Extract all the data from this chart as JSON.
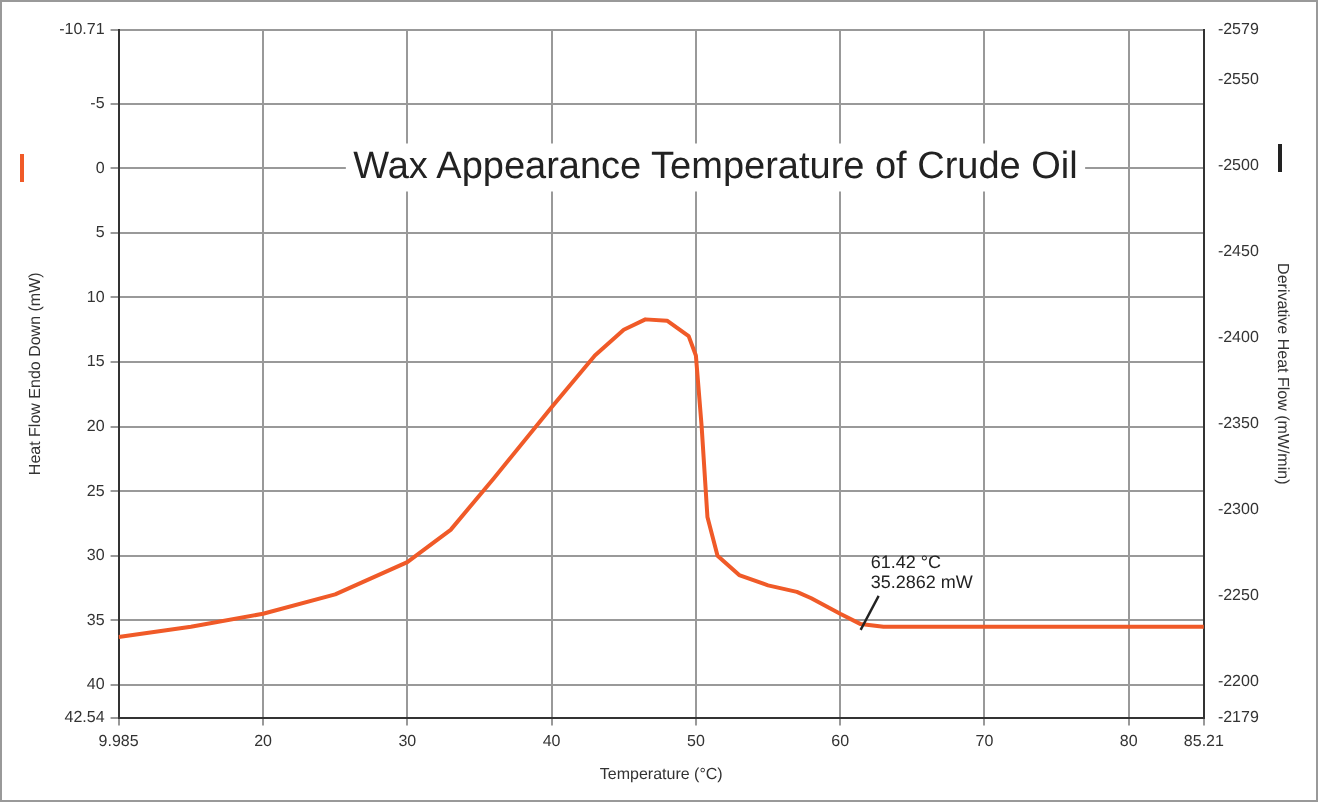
{
  "chart_data": {
    "type": "line",
    "title": "Wax Appearance Temperature of Crude Oil",
    "xlabel": "Temperature (°C)",
    "ylabel": "Heat Flow Endo Down (mW)",
    "y2label": "Derivative Heat Flow (mW/min)",
    "series": [
      {
        "color": "#f05a28",
        "x": [
          9.985,
          15,
          20,
          25,
          30,
          33,
          36,
          40,
          43,
          45,
          46.5,
          48,
          49.5,
          50,
          50.4,
          50.8,
          51.5,
          53,
          55,
          57,
          58,
          60,
          61.42,
          63,
          70,
          85.21
        ],
        "values": [
          36.3,
          35.5,
          34.5,
          33.0,
          30.5,
          28,
          24,
          18.5,
          14.5,
          12.5,
          11.7,
          11.8,
          13,
          14.5,
          20,
          27,
          30,
          31.5,
          32.3,
          32.8,
          33.3,
          34.5,
          35.3,
          35.5,
          35.5,
          35.5
        ]
      }
    ],
    "annotations": [
      {
        "text": "61.42 °C\n35.2862 mW",
        "x": 61.42,
        "y": 35.2862
      }
    ],
    "xlim": [
      9.985,
      85.21
    ],
    "xticks": [
      9.985,
      20,
      30,
      40,
      50,
      60,
      70,
      80,
      85.21
    ],
    "ylim": [
      42.54,
      -10.71
    ],
    "yticks": [
      -10.71,
      -5,
      0,
      5,
      10,
      15,
      20,
      25,
      30,
      35,
      40,
      42.54
    ],
    "y2lim": [
      -2179,
      -2579
    ],
    "y2ticks": [
      -2579,
      -2550,
      -2500,
      -2450,
      -2400,
      -2350,
      -2300,
      -2250,
      -2200,
      -2179
    ],
    "grid": true,
    "marker": "none",
    "line_style": "solid"
  }
}
